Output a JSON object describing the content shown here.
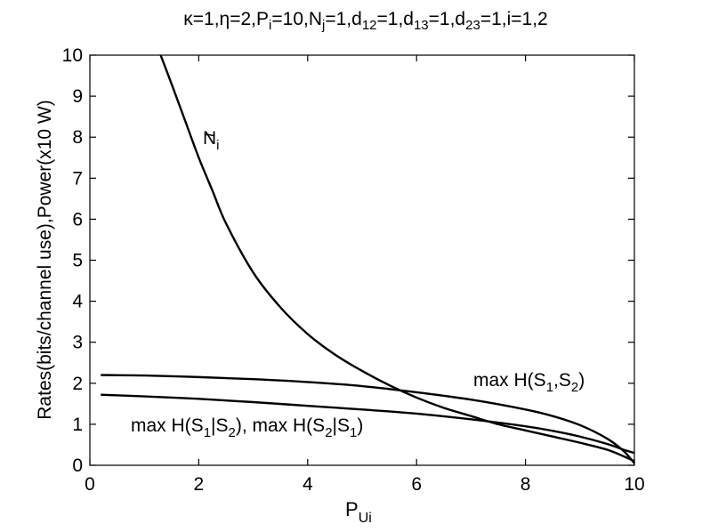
{
  "chart_data": {
    "type": "line",
    "title": "κ=1,η=2,P_i=10,N_j=1,d_12=1,d_13=1,d_23=1,i=1,2",
    "title_parts": {
      "p1": "κ=1,η=2,P",
      "s1": "i",
      "p2": "=10,N",
      "s2": "j",
      "p3": "=1,d",
      "s3": "12",
      "p4": "=1,d",
      "s4": "13",
      "p5": "=1,d",
      "s5": "23",
      "p6": "=1,i=1,2"
    },
    "xlabel": "P_Ui",
    "xlabel_parts": {
      "main": "P",
      "sub": "Ui"
    },
    "ylabel": "Rates(bits/channel use),Power(x10 W)",
    "xlim": [
      0,
      10
    ],
    "ylim": [
      0,
      10
    ],
    "xticks": [
      0,
      2,
      4,
      6,
      8,
      10
    ],
    "yticks": [
      0,
      1,
      2,
      3,
      4,
      5,
      6,
      7,
      8,
      9,
      10
    ],
    "grid": false,
    "series": [
      {
        "name": "Ñ_i",
        "x": [
          1.3,
          1.5,
          1.75,
          2.0,
          2.25,
          2.5,
          3.0,
          3.5,
          4.0,
          4.5,
          5.0,
          5.5,
          6.0,
          6.5,
          7.0,
          7.5,
          8.0,
          8.5,
          9.0,
          9.5,
          9.8,
          10.0
        ],
        "y": [
          10.0,
          9.3,
          8.4,
          7.5,
          6.7,
          5.9,
          4.7,
          3.85,
          3.2,
          2.7,
          2.3,
          1.95,
          1.65,
          1.4,
          1.2,
          1.0,
          0.85,
          0.7,
          0.55,
          0.38,
          0.22,
          0.1
        ]
      },
      {
        "name": "max H(S_1,S_2)",
        "x": [
          0.2,
          1.0,
          2.0,
          3.0,
          4.0,
          5.0,
          6.0,
          7.0,
          8.0,
          8.5,
          9.0,
          9.5,
          9.8,
          10.0
        ],
        "y": [
          2.2,
          2.19,
          2.15,
          2.1,
          2.03,
          1.93,
          1.78,
          1.6,
          1.36,
          1.2,
          0.98,
          0.65,
          0.35,
          0.05
        ]
      },
      {
        "name": "max H(S_1|S_2), max H(S_2|S_1)",
        "x": [
          0.2,
          1.0,
          2.0,
          3.0,
          4.0,
          5.0,
          6.0,
          7.0,
          8.0,
          8.5,
          9.0,
          9.5,
          9.8,
          10.0
        ],
        "y": [
          1.72,
          1.68,
          1.62,
          1.54,
          1.45,
          1.36,
          1.26,
          1.12,
          0.95,
          0.84,
          0.7,
          0.52,
          0.38,
          0.3
        ]
      }
    ],
    "annotations": {
      "ni": {
        "main": "N",
        "sub": "i",
        "tilde": "~"
      },
      "hjoint": {
        "a": "max H(S",
        "s1": "1",
        "b": ",S",
        "s2": "2",
        "c": ")"
      },
      "hcond": {
        "a": "max H(S",
        "s1": "1",
        "b": "|S",
        "s2": "2",
        "c": "), max H(S",
        "s3": "2",
        "d": "|S",
        "s4": "1",
        "e": ")"
      }
    }
  }
}
